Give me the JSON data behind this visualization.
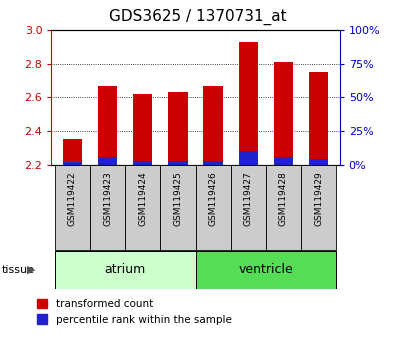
{
  "title": "GDS3625 / 1370731_at",
  "samples": [
    "GSM119422",
    "GSM119423",
    "GSM119424",
    "GSM119425",
    "GSM119426",
    "GSM119427",
    "GSM119428",
    "GSM119429"
  ],
  "transformed_counts": [
    2.35,
    2.67,
    2.62,
    2.63,
    2.67,
    2.93,
    2.81,
    2.75
  ],
  "percentile_actual": [
    2,
    6,
    3,
    3,
    3,
    10,
    6,
    4
  ],
  "y_min": 2.2,
  "y_max": 3.0,
  "y_ticks": [
    2.2,
    2.4,
    2.6,
    2.8,
    3.0
  ],
  "right_y_ticks_pct": [
    0,
    25,
    50,
    75,
    100
  ],
  "right_y_labels": [
    "0%",
    "25%",
    "50%",
    "75%",
    "100%"
  ],
  "bar_color_red": "#cc0000",
  "bar_color_blue": "#2222cc",
  "tissue_groups": [
    {
      "label": "atrium",
      "indices": [
        0,
        1,
        2,
        3
      ],
      "color": "#ccffcc",
      "edgecolor": "#33aa33"
    },
    {
      "label": "ventricle",
      "indices": [
        4,
        5,
        6,
        7
      ],
      "color": "#55dd55",
      "edgecolor": "#33aa33"
    }
  ],
  "bar_width": 0.55,
  "background_color": "#ffffff",
  "plot_bg_color": "#ffffff",
  "tick_color_left": "#cc0000",
  "tick_color_right": "#0000cc",
  "legend_red_label": "transformed count",
  "legend_blue_label": "percentile rank within the sample",
  "gray_box_color": "#cccccc",
  "title_fontsize": 11
}
